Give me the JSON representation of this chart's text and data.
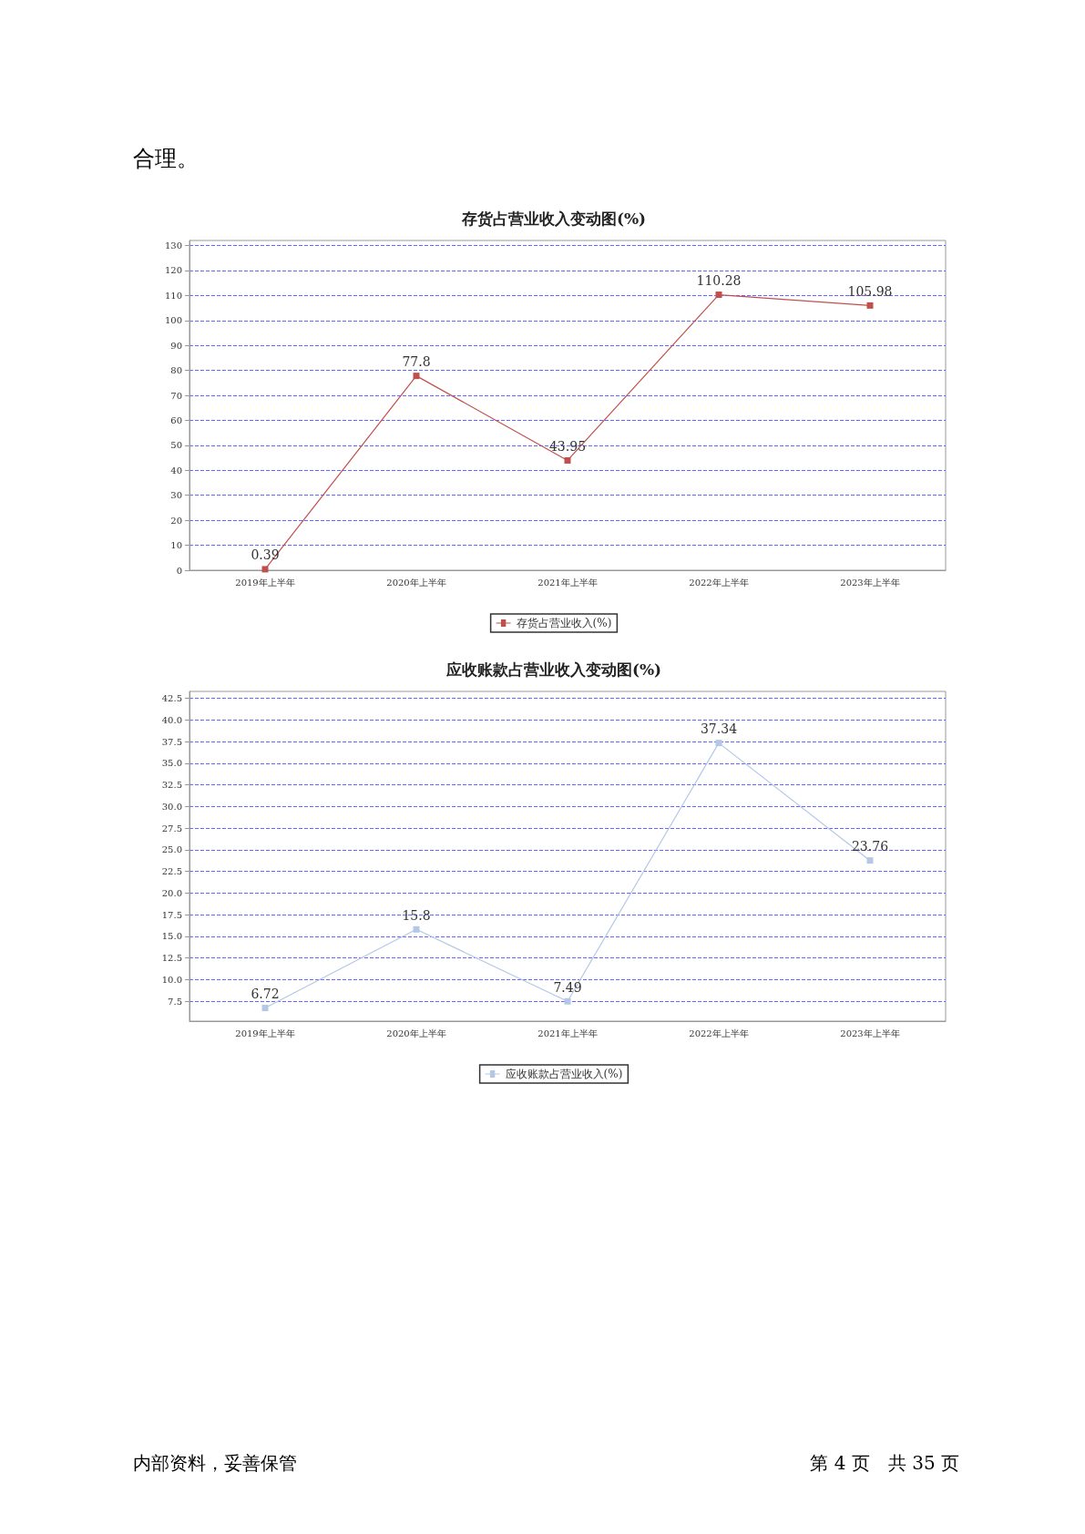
{
  "chart_data": [
    {
      "type": "line",
      "title": "存货占营业收入变动图(%)",
      "categories": [
        "2019年上半年",
        "2020年上半年",
        "2021年上半年",
        "2022年上半年",
        "2023年上半年"
      ],
      "series": [
        {
          "name": "存货占营业收入(%)",
          "color": "#c0504d",
          "values": [
            0.39,
            77.8,
            43.95,
            110.28,
            105.98
          ]
        }
      ],
      "ylim": [
        0,
        132
      ],
      "yticks": [
        0,
        10,
        20,
        30,
        40,
        50,
        60,
        70,
        80,
        90,
        100,
        110,
        120,
        130
      ],
      "grid": "y",
      "legend": "bottom",
      "marker": "square",
      "line_style": "solid",
      "data_labels": true,
      "annotations": [
        "合理。"
      ]
    },
    {
      "type": "line",
      "title": "应收账款占营业收入变动图(%)",
      "categories": [
        "2019年上半年",
        "2020年上半年",
        "2021年上半年",
        "2022年上半年",
        "2023年上半年"
      ],
      "series": [
        {
          "name": "应收账款占营业收入(%)",
          "color": "#b4c7e7",
          "values": [
            6.72,
            15.8,
            7.49,
            37.34,
            23.76
          ]
        }
      ],
      "ylim": [
        5.2,
        43.3
      ],
      "yticks": [
        {
          "value": 7.5,
          "label": "7.5"
        },
        {
          "value": 10,
          "label": "10.0"
        },
        {
          "value": 12.5,
          "label": "12.5"
        },
        {
          "value": 15,
          "label": "15.0"
        },
        {
          "value": 17.5,
          "label": "17.5"
        },
        {
          "value": 20,
          "label": "20.0"
        },
        {
          "value": 22.5,
          "label": "22.5"
        },
        {
          "value": 25,
          "label": "25.0"
        },
        {
          "value": 27.5,
          "label": "27.5"
        },
        {
          "value": 30,
          "label": "30.0"
        },
        {
          "value": 32.5,
          "label": "32.5"
        },
        {
          "value": 35,
          "label": "35.0"
        },
        {
          "value": 37.5,
          "label": "37.5"
        },
        {
          "value": 40,
          "label": "40.0"
        },
        {
          "value": 42.5,
          "label": "42.5"
        }
      ],
      "grid": "y",
      "legend": "bottom",
      "marker": "square",
      "line_style": "solid",
      "data_labels": true,
      "annotations": [
        "内部资料，妥善保管",
        "第 4 页　共 35 页"
      ]
    }
  ]
}
